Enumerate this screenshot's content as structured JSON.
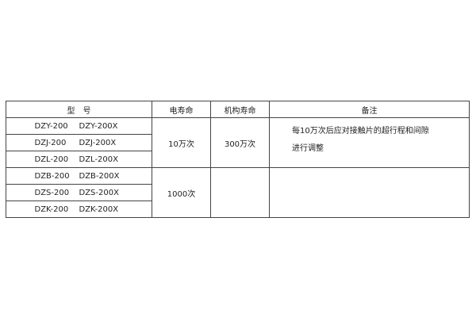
{
  "headers": [
    "型　号",
    "电寿命",
    "机构寿命",
    "备注"
  ],
  "rows": [
    {
      "model": "DZY-200",
      "model_x": "DZY-200X"
    },
    {
      "model": "DZJ-200",
      "model_x": "DZJ-200X"
    },
    {
      "model": "DZL-200",
      "model_x": "DZL-200X"
    },
    {
      "model": "DZB-200",
      "model_x": "DZB-200X"
    },
    {
      "model": "DZS-200",
      "model_x": "DZS-200X"
    },
    {
      "model": "DZK-200",
      "model_x": "DZK-200X"
    }
  ],
  "groups": [
    {
      "electrical_life": "10万次",
      "mechanical_life": "300万次",
      "note_line1": "每10万次后应对接触片的超行程和间隙",
      "note_line2": "进行调整"
    },
    {
      "electrical_life": "1000次",
      "mechanical_life": "",
      "note_line1": "",
      "note_line2": ""
    }
  ]
}
